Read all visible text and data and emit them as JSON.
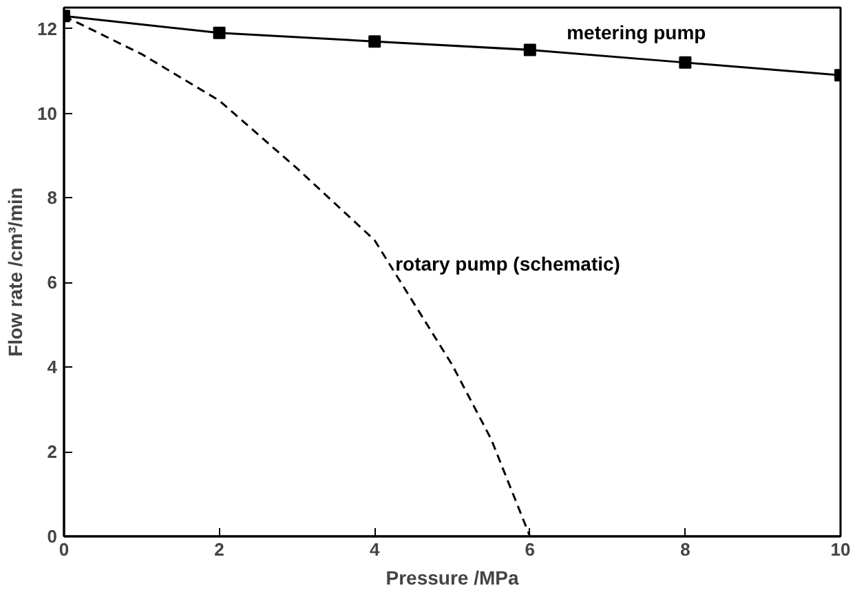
{
  "chart_data": {
    "type": "line",
    "xlabel": "Pressure /MPa",
    "ylabel": "Flow rate /cm³/min",
    "xlim": [
      0,
      10
    ],
    "ylim": [
      0,
      12.5
    ],
    "xticks": [
      0,
      2,
      4,
      6,
      8,
      10
    ],
    "yticks": [
      0,
      2,
      4,
      6,
      8,
      10,
      12
    ],
    "grid": false,
    "series": [
      {
        "name": "metering pump",
        "color": "#000000",
        "marker": "square",
        "line_style": "solid",
        "x": [
          0,
          2,
          4,
          6,
          8,
          10
        ],
        "values": [
          12.3,
          11.9,
          11.7,
          11.5,
          11.2,
          10.9
        ]
      },
      {
        "name": "rotary pump (schematic)",
        "color": "#000000",
        "marker": "none",
        "line_style": "dashed",
        "x": [
          0,
          1,
          2,
          3,
          4,
          5,
          5.5,
          6
        ],
        "values": [
          12.3,
          11.4,
          10.3,
          8.7,
          7.0,
          4.05,
          2.3,
          0
        ]
      }
    ]
  }
}
